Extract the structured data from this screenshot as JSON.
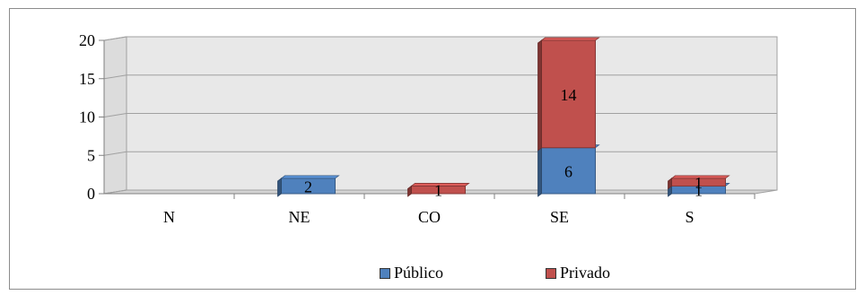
{
  "chart_data": {
    "type": "bar",
    "stacked": true,
    "three_d": true,
    "categories": [
      "N",
      "NE",
      "CO",
      "SE",
      "S"
    ],
    "series": [
      {
        "name": "Público",
        "values": [
          0,
          2,
          0,
          6,
          1
        ],
        "color": "#4f81bd",
        "labels": [
          "",
          "2",
          "",
          "6",
          "1"
        ]
      },
      {
        "name": "Privado",
        "values": [
          0,
          0,
          1,
          14,
          1
        ],
        "color": "#c0504d",
        "labels": [
          "",
          "",
          "1",
          "14",
          "1"
        ]
      }
    ],
    "yticks": [
      "0",
      "5",
      "10",
      "15",
      "20"
    ],
    "ylim": [
      0,
      20
    ],
    "grid": true,
    "legend_position": "bottom"
  }
}
